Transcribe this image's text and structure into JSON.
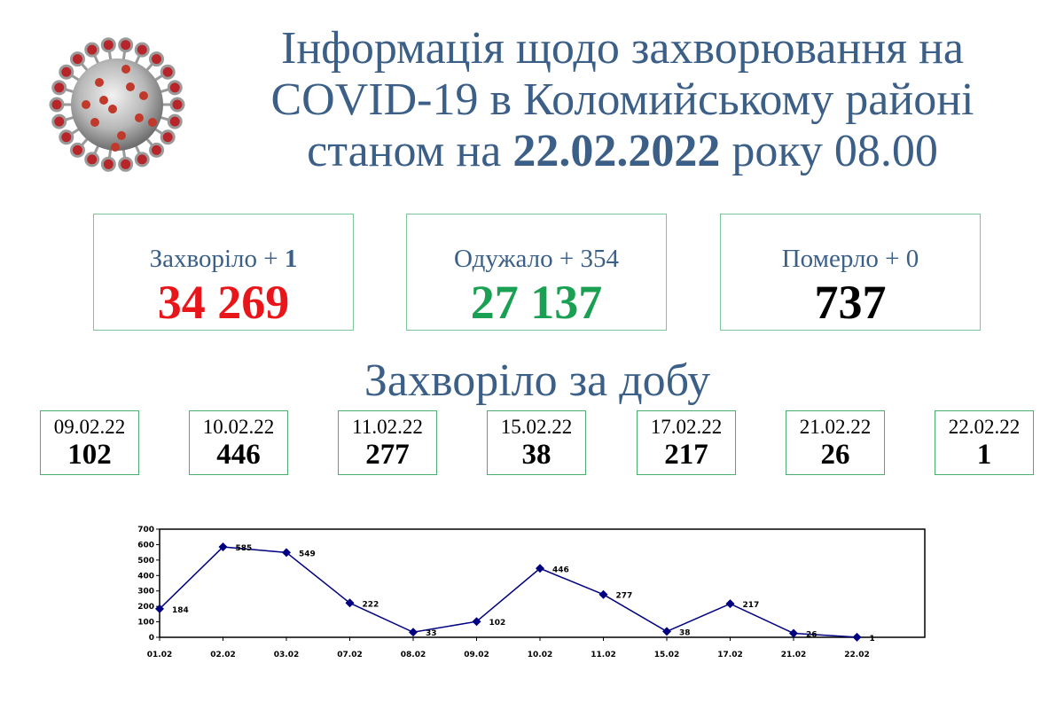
{
  "header": {
    "title_line1": "Інформація щодо захворювання на",
    "title_line2": "COVID-19 в Коломийському районі",
    "title_line3_prefix": "станом на ",
    "title_date": "22.02.2022",
    "title_line3_suffix": " року 08.00"
  },
  "stats": [
    {
      "label": "Захворіло + ",
      "delta": "1",
      "value": "34 269",
      "color": "#e8161b"
    },
    {
      "label": "Одужало + ",
      "delta": "354",
      "value": "27 137",
      "color": "#1aa052"
    },
    {
      "label": "Померло + ",
      "delta": "0",
      "value": "737",
      "color": "#000000"
    }
  ],
  "daily_title": "Захворіло за добу",
  "daily": [
    {
      "date": "09.02.22",
      "count": "102"
    },
    {
      "date": "10.02.22",
      "count": "446"
    },
    {
      "date": "11.02.22",
      "count": "277"
    },
    {
      "date": "15.02.22",
      "count": "38"
    },
    {
      "date": "17.02.22",
      "count": "217"
    },
    {
      "date": "21.02.22",
      "count": "26"
    },
    {
      "date": "22.02.22",
      "count": "1"
    }
  ],
  "chart_data": {
    "type": "line",
    "categories": [
      "01.02",
      "02.02",
      "03.02",
      "07.02",
      "08.02",
      "09.02",
      "10.02",
      "11.02",
      "15.02",
      "17.02",
      "21.02",
      "22.02"
    ],
    "values": [
      184,
      585,
      549,
      222,
      33,
      102,
      446,
      277,
      38,
      217,
      26,
      1
    ],
    "yticks": [
      0,
      100,
      200,
      300,
      400,
      500,
      600,
      700
    ],
    "ylim": [
      0,
      700
    ],
    "line_color": "#000080",
    "data_labels": true,
    "legend": "none"
  },
  "icons": {
    "virus": "coronavirus-illustration"
  }
}
